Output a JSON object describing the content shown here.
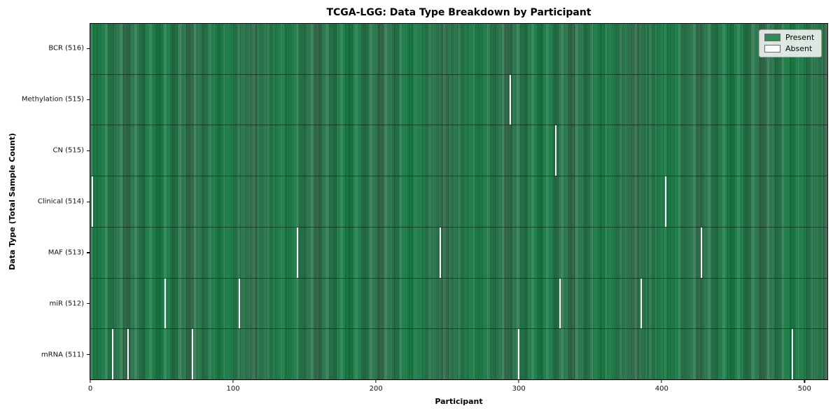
{
  "chart_data": {
    "type": "heatmap",
    "title": "TCGA-LGG: Data Type Breakdown by Participant",
    "xlabel": "Participant",
    "ylabel": "Data Type (Total Sample Count)",
    "n_participants": 516,
    "x_axis_range": [
      -0.5,
      516.5
    ],
    "x_ticks": [
      0,
      100,
      200,
      300,
      400,
      500
    ],
    "grid": false,
    "colors": {
      "present": "#2e8b57",
      "present_edge": "#1a5233",
      "absent": "#ffffff",
      "plot_border": "#000000",
      "legend_face": "#eef2ee"
    },
    "legend": {
      "position": "upper-right",
      "items": [
        {
          "label": "Present",
          "color": "#2e8b57"
        },
        {
          "label": "Absent",
          "color": "#ffffff"
        }
      ]
    },
    "series": [
      {
        "name": "BCR",
        "label": "BCR (516)",
        "present_count": 516,
        "absent_participants": []
      },
      {
        "name": "Methylation",
        "label": "Methylation (515)",
        "present_count": 515,
        "absent_participants": [
          294
        ]
      },
      {
        "name": "CN",
        "label": "CN (515)",
        "present_count": 515,
        "absent_participants": [
          326
        ]
      },
      {
        "name": "Clinical",
        "label": "Clinical (514)",
        "present_count": 514,
        "absent_participants": [
          1,
          403
        ]
      },
      {
        "name": "MAF",
        "label": "MAF (513)",
        "present_count": 513,
        "absent_participants": [
          145,
          245,
          428
        ]
      },
      {
        "name": "miR",
        "label": "miR (512)",
        "present_count": 512,
        "absent_participants": [
          52,
          104,
          329,
          386
        ]
      },
      {
        "name": "mRNA",
        "label": "mRNA (511)",
        "present_count": 511,
        "absent_participants": [
          15,
          26,
          71,
          300,
          492
        ]
      }
    ]
  }
}
